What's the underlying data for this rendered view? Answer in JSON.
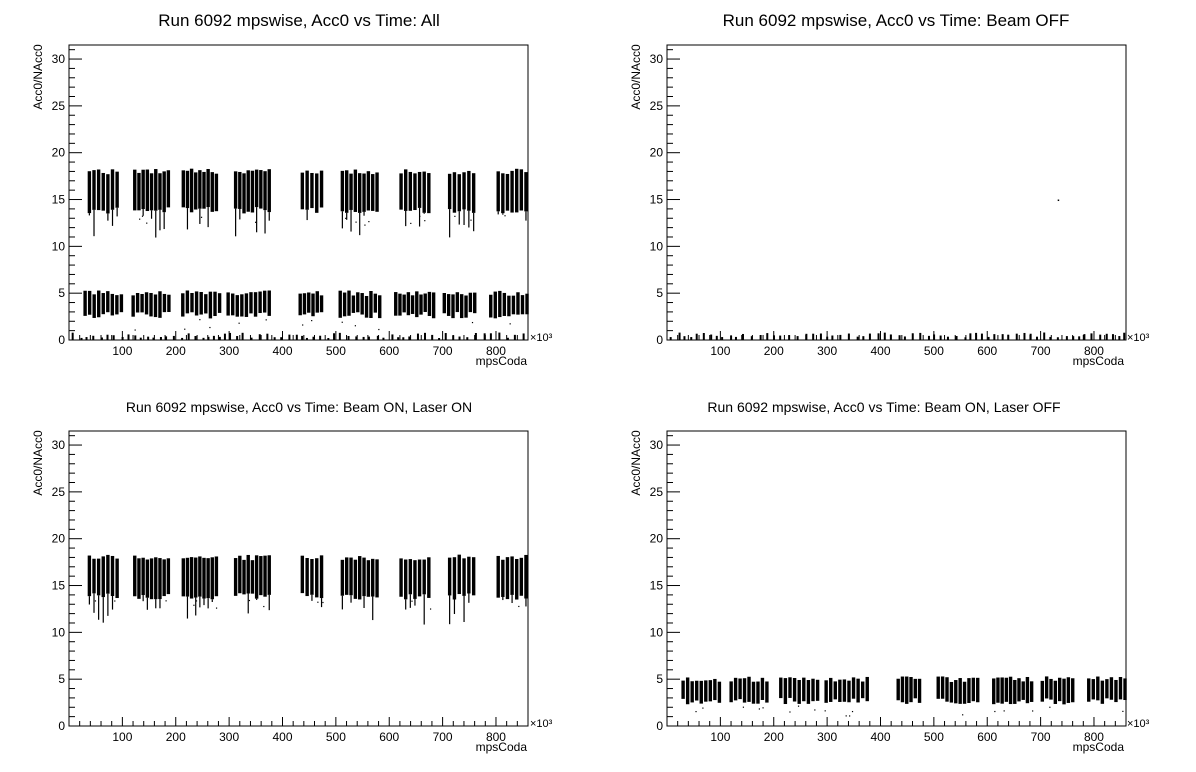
{
  "x_exponent_label": "×10³",
  "chart_data": [
    {
      "type": "scatter",
      "title": "Run 6092 mpswise, Acc0 vs Time: All",
      "xlabel": "mpsCoda",
      "ylabel": "Acc0/NAcc0",
      "x_scale": "×10³",
      "xlim": [
        0,
        860
      ],
      "ylim": [
        0,
        31.5
      ],
      "xticks": [
        100,
        200,
        300,
        400,
        500,
        600,
        700,
        800
      ],
      "yticks": [
        0,
        5,
        10,
        15,
        20,
        25,
        30
      ],
      "grid": false,
      "legend": "none",
      "clusters": [
        {
          "name": "beam_on_laser_on",
          "y_range": [
            13.5,
            18.3
          ],
          "tail_min": 10.8,
          "x_groups": [
            [
              38,
              90
            ],
            [
              123,
              186
            ],
            [
              214,
              276
            ],
            [
              312,
              375
            ],
            [
              437,
              473
            ],
            [
              512,
              577
            ],
            [
              622,
              674
            ],
            [
              713,
              758
            ],
            [
              804,
              856
            ]
          ]
        },
        {
          "name": "beam_on_laser_off",
          "y_range": [
            2.3,
            5.3
          ],
          "x_groups": [
            [
              30,
              98
            ],
            [
              120,
              187
            ],
            [
              213,
              282
            ],
            [
              298,
              375
            ],
            [
              433,
              473
            ],
            [
              508,
              582
            ],
            [
              612,
              683
            ],
            [
              703,
              760
            ],
            [
              790,
              858
            ]
          ]
        },
        {
          "name": "beam_off",
          "y_range": [
            0,
            0.8
          ],
          "x_groups": [
            [
              5,
              855
            ]
          ]
        }
      ]
    },
    {
      "type": "scatter",
      "title": "Run 6092 mpswise, Acc0 vs Time: Beam OFF",
      "xlabel": "mpsCoda",
      "ylabel": "Acc0/NAcc0",
      "x_scale": "×10³",
      "xlim": [
        0,
        860
      ],
      "ylim": [
        0,
        31.5
      ],
      "xticks": [
        100,
        200,
        300,
        400,
        500,
        600,
        700,
        800
      ],
      "yticks": [
        0,
        5,
        10,
        15,
        20,
        25,
        30
      ],
      "grid": false,
      "legend": "none",
      "clusters": [
        {
          "name": "beam_off",
          "y_range": [
            0,
            0.8
          ],
          "x_groups": [
            [
              5,
              855
            ]
          ]
        }
      ],
      "outliers": [
        {
          "x": 732,
          "y": 15.0
        }
      ]
    },
    {
      "type": "scatter",
      "title": "Run 6092 mpswise, Acc0 vs Time: Beam ON, Laser ON",
      "xlabel": "mpsCoda",
      "ylabel": "Acc0/NAcc0",
      "x_scale": "×10³",
      "xlim": [
        0,
        860
      ],
      "ylim": [
        0,
        31.5
      ],
      "xticks": [
        100,
        200,
        300,
        400,
        500,
        600,
        700,
        800
      ],
      "yticks": [
        0,
        5,
        10,
        15,
        20,
        25,
        30
      ],
      "grid": false,
      "legend": "none",
      "clusters": [
        {
          "name": "beam_on_laser_on",
          "y_range": [
            13.5,
            18.3
          ],
          "tail_min": 10.8,
          "x_groups": [
            [
              38,
              90
            ],
            [
              123,
              186
            ],
            [
              214,
              276
            ],
            [
              312,
              375
            ],
            [
              437,
              473
            ],
            [
              512,
              577
            ],
            [
              622,
              674
            ],
            [
              713,
              758
            ],
            [
              804,
              856
            ]
          ]
        }
      ]
    },
    {
      "type": "scatter",
      "title": "Run 6092 mpswise, Acc0 vs Time: Beam ON, Laser OFF",
      "xlabel": "mpsCoda",
      "ylabel": "Acc0/NAcc0",
      "x_scale": "×10³",
      "xlim": [
        0,
        860
      ],
      "ylim": [
        0,
        31.5
      ],
      "xticks": [
        100,
        200,
        300,
        400,
        500,
        600,
        700,
        800
      ],
      "yticks": [
        0,
        5,
        10,
        15,
        20,
        25,
        30
      ],
      "grid": false,
      "legend": "none",
      "clusters": [
        {
          "name": "beam_on_laser_off",
          "y_range": [
            2.3,
            5.3
          ],
          "x_groups": [
            [
              30,
              98
            ],
            [
              120,
              187
            ],
            [
              213,
              282
            ],
            [
              298,
              375
            ],
            [
              433,
              473
            ],
            [
              508,
              582
            ],
            [
              612,
              683
            ],
            [
              703,
              760
            ],
            [
              790,
              858
            ]
          ]
        }
      ]
    }
  ]
}
